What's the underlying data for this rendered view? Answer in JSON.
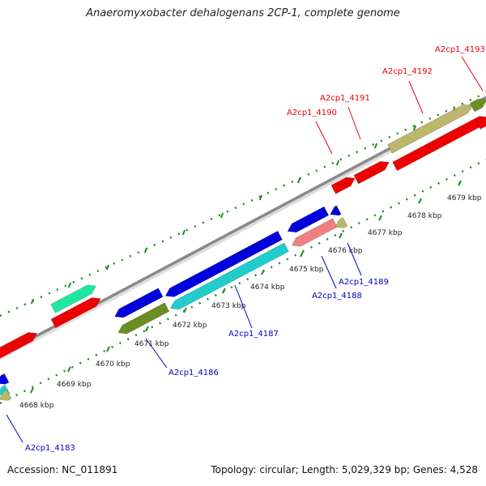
{
  "header": {
    "title": "Anaeromyxobacter dehalogenans 2CP-1, complete genome"
  },
  "footer": {
    "accession": "Accession: NC_011891",
    "topology": "Topology: circular; Length: 5,029,329 bp; Genes: 4,528"
  },
  "colors": {
    "backbone": "#8a8a8a",
    "tick": "#228b22",
    "forward_label": "#e8000b",
    "reverse_label": "#0000cc"
  },
  "kbp_ticks": [
    {
      "label": "4668 kbp"
    },
    {
      "label": "4669 kbp"
    },
    {
      "label": "4670 kbp"
    },
    {
      "label": "4671 kbp"
    },
    {
      "label": "4672 kbp"
    },
    {
      "label": "4673 kbp"
    },
    {
      "label": "4674 kbp"
    },
    {
      "label": "4675 kbp"
    },
    {
      "label": "4676 kbp"
    },
    {
      "label": "4677 kbp"
    },
    {
      "label": "4678 kbp"
    },
    {
      "label": "4679 kbp"
    }
  ],
  "gene_labels": [
    {
      "name": "A2cp1_4183",
      "strand": "reverse"
    },
    {
      "name": "A2cp1_4186",
      "strand": "reverse"
    },
    {
      "name": "A2cp1_4187",
      "strand": "reverse"
    },
    {
      "name": "A2cp1_4188",
      "strand": "reverse"
    },
    {
      "name": "A2cp1_4189",
      "strand": "reverse"
    },
    {
      "name": "A2cp1_4190",
      "strand": "forward"
    },
    {
      "name": "A2cp1_4191",
      "strand": "forward"
    },
    {
      "name": "A2cp1_4192",
      "strand": "forward"
    },
    {
      "name": "A2cp1_4193",
      "strand": "forward"
    }
  ]
}
